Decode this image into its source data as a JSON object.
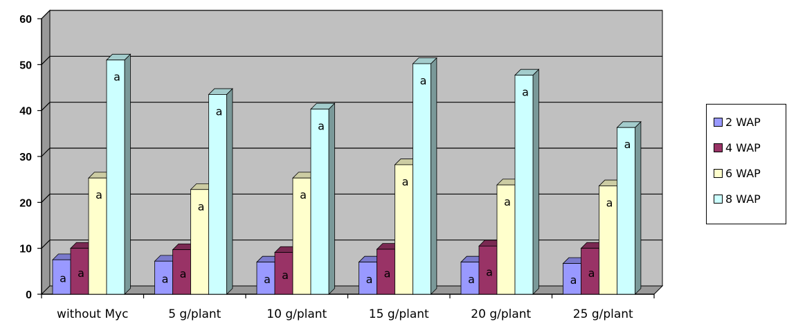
{
  "chart_data": {
    "type": "bar",
    "categories": [
      "without Myc",
      "5 g/plant",
      "10 g/plant",
      "15 g/plant",
      "20 g/plant",
      "25 g/plant"
    ],
    "series": [
      {
        "name": "2 WAP",
        "color": "#9999ff",
        "values": [
          7.5,
          7.2,
          7.0,
          7.0,
          7.0,
          6.7
        ],
        "labels": [
          "a",
          "a",
          "a",
          "a",
          "a",
          "a"
        ]
      },
      {
        "name": "4 WAP",
        "color": "#993366",
        "values": [
          10.0,
          9.7,
          9.1,
          9.8,
          10.5,
          10.0
        ],
        "labels": [
          "a",
          "a",
          "a",
          "a",
          "a",
          "a"
        ]
      },
      {
        "name": "6 WAP",
        "color": "#ffffcc",
        "values": [
          25.3,
          22.8,
          25.3,
          28.2,
          23.8,
          23.6
        ],
        "labels": [
          "a",
          "a",
          "a",
          "a",
          "a",
          "a"
        ]
      },
      {
        "name": "8 WAP",
        "color": "#ccffff",
        "values": [
          51.0,
          43.5,
          40.3,
          50.2,
          47.7,
          36.3
        ],
        "labels": [
          "a",
          "a",
          "a",
          "a",
          "a",
          "a"
        ]
      }
    ],
    "yticks": [
      0,
      10,
      20,
      30,
      40,
      50,
      60
    ],
    "ylim": [
      0,
      60
    ],
    "grid": true,
    "legend_position": "right",
    "plot_background": "#c0c0c0"
  }
}
